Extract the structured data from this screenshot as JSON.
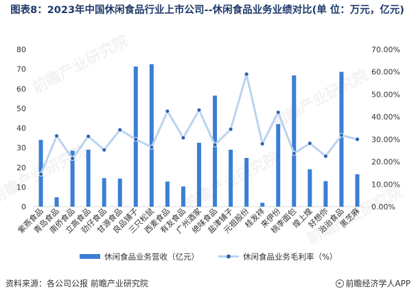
{
  "title": "图表8：2023年中国休闲食品行业上市公司--休闲食品业务业绩对比(单 位：万元，亿元)",
  "source": "资料来源：各公司公报 前瞻产业研究院",
  "brand": "前瞻经济学人APP",
  "watermark": "前瞻产业研究院",
  "colors": {
    "bar": "#3a7fd5",
    "line": "#b9d3ee",
    "marker": "#2b65ae",
    "axis_text": "#333333"
  },
  "chart_data": {
    "type": "bar",
    "categories": [
      "紫燕食品",
      "青岛食品",
      "南侨食品",
      "立高食品",
      "劲仔食品",
      "甘源食品",
      "良品铺子",
      "三只松鼠",
      "西麦食品",
      "有友食品",
      "广州酒家",
      "绝味食品",
      "盐津铺子",
      "元祖股份",
      "桂发祥",
      "来伊份",
      "桃李面包",
      "煌上煌",
      "好想你",
      "治治食品",
      "黑芝麻"
    ],
    "y_left": {
      "min": 0,
      "max": 80,
      "ticks": [
        0,
        10,
        20,
        30,
        40,
        50,
        60,
        70,
        80
      ]
    },
    "y_right": {
      "min": 0,
      "max": 0.7,
      "ticks": [
        "0.00%",
        "10.00%",
        "20.00%",
        "30.00%",
        "40.00%",
        "50.00%",
        "60.00%",
        "70.00%"
      ]
    },
    "series": [
      {
        "name": "休闲食品业务营收（亿元）",
        "type": "bar",
        "axis": "left",
        "values": [
          34.0,
          4.8,
          28.5,
          29.0,
          14.5,
          14.3,
          71.3,
          72.5,
          12.8,
          10.3,
          32.5,
          56.5,
          29.0,
          24.8,
          2.0,
          42.0,
          66.8,
          19.0,
          13.0,
          68.6,
          16.5
        ]
      },
      {
        "name": "休闲食品业务毛利率（%）",
        "type": "line",
        "axis": "right",
        "values": [
          0.145,
          0.315,
          0.215,
          0.313,
          0.253,
          0.342,
          0.3,
          0.265,
          0.425,
          0.307,
          0.43,
          0.275,
          0.345,
          0.59,
          0.28,
          0.42,
          0.237,
          0.282,
          0.225,
          0.318,
          0.3
        ]
      }
    ],
    "legend_placement": "bottom-center",
    "grid": false
  }
}
